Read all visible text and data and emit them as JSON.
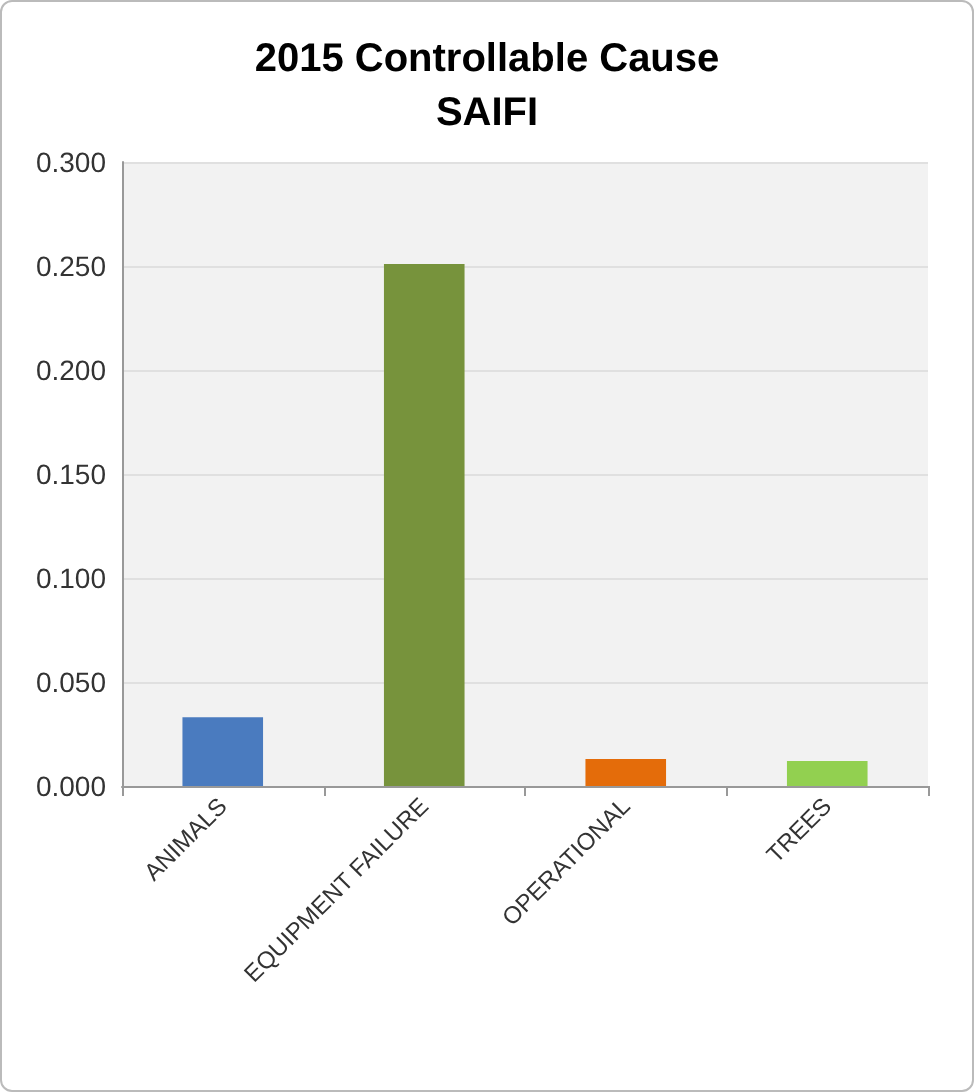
{
  "chart_data": {
    "type": "bar",
    "title": "2015 Controllable Cause\nSAIFI",
    "categories": [
      "ANIMALS",
      "EQUIPMENT FAILURE",
      "OPERATIONAL",
      "TREES"
    ],
    "values": [
      0.033,
      0.251,
      0.013,
      0.012
    ],
    "colors": [
      "#4a7bbf",
      "#77933c",
      "#e46c0a",
      "#92d050"
    ],
    "ylim": [
      0,
      0.3
    ],
    "yticks": [
      {
        "value": 0,
        "label": "0.000"
      },
      {
        "value": 0.05,
        "label": "0.050"
      },
      {
        "value": 0.1,
        "label": "0.100"
      },
      {
        "value": 0.15,
        "label": "0.150"
      },
      {
        "value": 0.2,
        "label": "0.200"
      },
      {
        "value": 0.25,
        "label": "0.250"
      },
      {
        "value": 0.3,
        "label": "0.300"
      }
    ],
    "grid": "y"
  }
}
